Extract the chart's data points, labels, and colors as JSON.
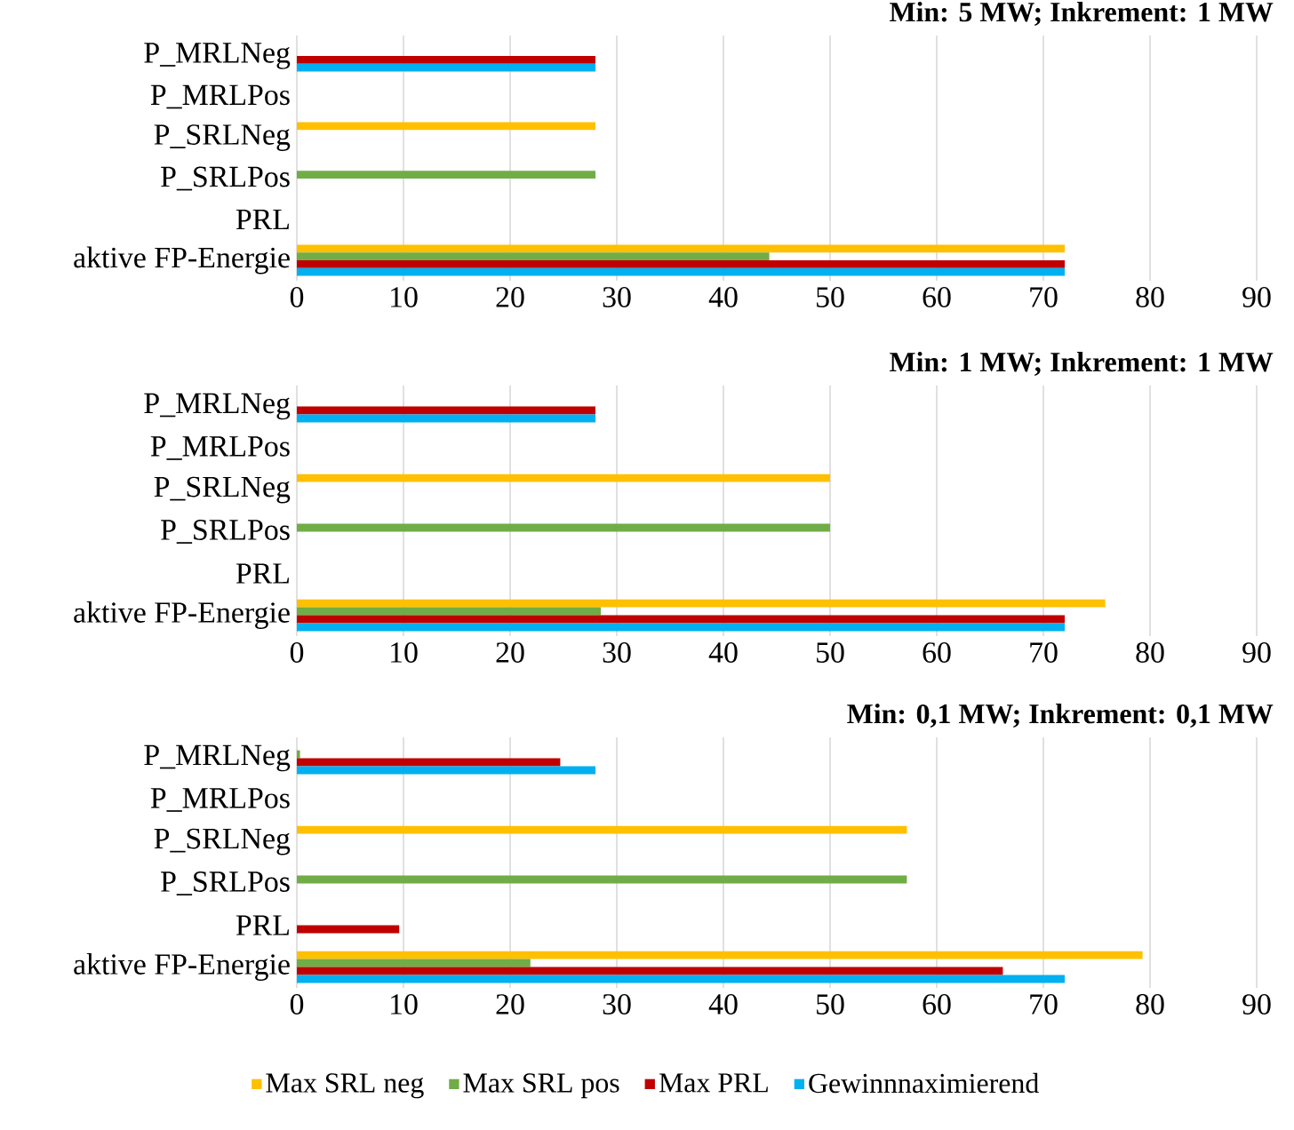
{
  "chart_data": [
    {
      "type": "bar",
      "orientation": "horizontal",
      "title": "**Min: 5 MW; Inkrement: 1 MW**",
      "categories": [
        "P_MRLNeg",
        "P_MRLPos",
        "P_SRLNeg",
        "P_SRLPos",
        "PRL",
        "aktive FP-Energie"
      ],
      "xlim": [
        0,
        90
      ],
      "xticks": [
        0,
        10,
        20,
        30,
        40,
        50,
        60,
        70,
        80,
        90
      ],
      "grid": "x",
      "legend": false,
      "series": [
        {
          "color": "#ffc000",
          "values": [
            0,
            0,
            28,
            0,
            0,
            72
          ]
        },
        {
          "color": "#70ad47",
          "values": [
            0,
            0,
            0,
            28,
            0,
            44.3
          ]
        },
        {
          "color": "#c00000",
          "values": [
            28,
            0,
            0,
            0,
            0,
            72
          ]
        },
        {
          "color": "#00b0f0",
          "values": [
            28,
            0,
            0,
            0,
            0,
            72
          ]
        }
      ]
    },
    {
      "type": "bar",
      "orientation": "horizontal",
      "title": "**Min: 1 MW; Inkrement: 1 MW**",
      "categories": [
        "P_MRLNeg",
        "P_MRLPos",
        "P_SRLNeg",
        "P_SRLPos",
        "PRL",
        "aktive FP-Energie"
      ],
      "xlim": [
        0,
        90
      ],
      "xticks": [
        0,
        10,
        20,
        30,
        40,
        50,
        60,
        70,
        80,
        90
      ],
      "grid": "x",
      "legend": false,
      "series": [
        {
          "color": "#ffc000",
          "values": [
            0,
            0,
            50,
            0,
            0,
            75.8
          ]
        },
        {
          "color": "#70ad47",
          "values": [
            0,
            0,
            0,
            50,
            0,
            28.5
          ]
        },
        {
          "color": "#c00000",
          "values": [
            28,
            0,
            0,
            0,
            0,
            72
          ]
        },
        {
          "color": "#00b0f0",
          "values": [
            28,
            0,
            0,
            0,
            0,
            72
          ]
        }
      ]
    },
    {
      "type": "bar",
      "orientation": "horizontal",
      "title": "**Min: 0,1 MW; Inkrement: 0,1 MW**",
      "categories": [
        "P_MRLNeg",
        "P_MRLPos",
        "P_SRLNeg",
        "P_SRLPos",
        "PRL",
        "aktive FP-Energie"
      ],
      "xlim": [
        0,
        90
      ],
      "xticks": [
        0,
        10,
        20,
        30,
        40,
        50,
        60,
        70,
        80,
        90
      ],
      "grid": "x",
      "legend": "bottom",
      "series": [
        {
          "name": "Max SRL neg",
          "color": "#ffc000",
          "values": [
            0,
            0,
            57.2,
            0,
            0,
            79.3
          ]
        },
        {
          "name": "Max SRL pos",
          "color": "#70ad47",
          "values": [
            0.3,
            0,
            0,
            57.2,
            0,
            21.9
          ]
        },
        {
          "name": "Max PRL",
          "color": "#c00000",
          "values": [
            24.7,
            0,
            0,
            0,
            9.6,
            66.2
          ]
        },
        {
          "name": "Gewinnnaximierend",
          "color": "#00b0f0",
          "values": [
            28,
            0,
            0,
            0,
            0,
            72
          ]
        }
      ]
    }
  ]
}
